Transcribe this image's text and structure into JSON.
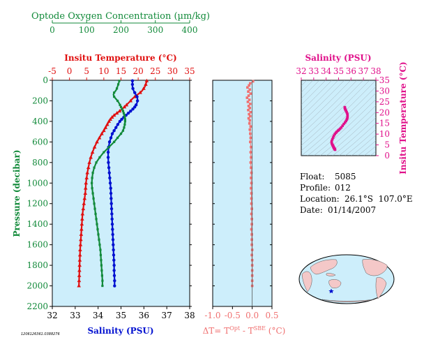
{
  "colors": {
    "panel_bg": "#cdeefb",
    "temperature": "#e01010",
    "salinity": "#0010d0",
    "oxygen": "#128a3a",
    "delta": "#f07070",
    "ts": "#e0108a",
    "land": "#f4c8c8",
    "ocean": "#cdeefb"
  },
  "chart_data": [
    {
      "type": "line",
      "panel": "profiles",
      "y_axis": {
        "label": "Pressure (decibar)",
        "range": [
          0,
          2200
        ],
        "ticks": [
          "0",
          "200",
          "400",
          "600",
          "800",
          "1000",
          "1200",
          "1400",
          "1600",
          "1800",
          "2000",
          "2200"
        ]
      },
      "oxygen_axis": {
        "label": "Optode Oxygen Concentration (µm/kg)",
        "range": [
          0,
          400
        ],
        "ticks": [
          "0",
          "100",
          "200",
          "300",
          "400"
        ]
      },
      "temperature_axis": {
        "label": "Insitu Temperature (°C)",
        "range": [
          -5,
          35
        ],
        "ticks": [
          "-5",
          "0",
          "5",
          "10",
          "15",
          "20",
          "25",
          "30",
          "35"
        ]
      },
      "salinity_axis": {
        "label": "Salinity (PSU)",
        "range": [
          32,
          38
        ],
        "ticks": [
          "32",
          "33",
          "34",
          "35",
          "36",
          "37",
          "38"
        ]
      },
      "series": [
        {
          "variable": "temperature",
          "points": [
            [
              5,
              22.5
            ],
            [
              20,
              22.4
            ],
            [
              40,
              22.2
            ],
            [
              60,
              22.0
            ],
            [
              80,
              21.6
            ],
            [
              100,
              21.2
            ],
            [
              120,
              20.6
            ],
            [
              140,
              19.8
            ],
            [
              160,
              19.0
            ],
            [
              180,
              18.3
            ],
            [
              200,
              17.8
            ],
            [
              220,
              17.2
            ],
            [
              240,
              16.6
            ],
            [
              260,
              16.0
            ],
            [
              280,
              15.3
            ],
            [
              300,
              14.6
            ],
            [
              320,
              13.8
            ],
            [
              340,
              13.0
            ],
            [
              360,
              12.4
            ],
            [
              380,
              11.9
            ],
            [
              400,
              11.5
            ],
            [
              430,
              11.0
            ],
            [
              460,
              10.5
            ],
            [
              490,
              10.0
            ],
            [
              520,
              9.4
            ],
            [
              560,
              8.7
            ],
            [
              600,
              8.0
            ],
            [
              650,
              7.3
            ],
            [
              700,
              6.7
            ],
            [
              750,
              6.2
            ],
            [
              800,
              5.8
            ],
            [
              850,
              5.5
            ],
            [
              900,
              5.2
            ],
            [
              950,
              5.0
            ],
            [
              1000,
              4.8
            ],
            [
              1050,
              4.7
            ],
            [
              1100,
              4.6
            ],
            [
              1150,
              4.4
            ],
            [
              1200,
              4.2
            ],
            [
              1250,
              4.0
            ],
            [
              1300,
              3.8
            ],
            [
              1350,
              3.7
            ],
            [
              1400,
              3.6
            ],
            [
              1450,
              3.5
            ],
            [
              1500,
              3.4
            ],
            [
              1550,
              3.3
            ],
            [
              1600,
              3.2
            ],
            [
              1650,
              3.1
            ],
            [
              1700,
              3.05
            ],
            [
              1750,
              3.0
            ],
            [
              1800,
              2.95
            ],
            [
              1850,
              2.9
            ],
            [
              1900,
              2.85
            ],
            [
              1950,
              2.8
            ],
            [
              2000,
              2.75
            ]
          ]
        },
        {
          "variable": "salinity",
          "points": [
            [
              5,
              35.5
            ],
            [
              20,
              35.5
            ],
            [
              40,
              35.5
            ],
            [
              60,
              35.5
            ],
            [
              80,
              35.52
            ],
            [
              100,
              35.55
            ],
            [
              120,
              35.6
            ],
            [
              140,
              35.65
            ],
            [
              160,
              35.7
            ],
            [
              180,
              35.72
            ],
            [
              200,
              35.72
            ],
            [
              220,
              35.7
            ],
            [
              240,
              35.66
            ],
            [
              260,
              35.6
            ],
            [
              280,
              35.52
            ],
            [
              300,
              35.42
            ],
            [
              320,
              35.32
            ],
            [
              340,
              35.22
            ],
            [
              360,
              35.12
            ],
            [
              380,
              35.03
            ],
            [
              400,
              34.95
            ],
            [
              430,
              34.86
            ],
            [
              460,
              34.78
            ],
            [
              490,
              34.7
            ],
            [
              520,
              34.62
            ],
            [
              560,
              34.56
            ],
            [
              600,
              34.5
            ],
            [
              650,
              34.46
            ],
            [
              700,
              34.44
            ],
            [
              750,
              34.44
            ],
            [
              800,
              34.45
            ],
            [
              850,
              34.47
            ],
            [
              900,
              34.49
            ],
            [
              950,
              34.51
            ],
            [
              1000,
              34.53
            ],
            [
              1050,
              34.55
            ],
            [
              1100,
              34.56
            ],
            [
              1150,
              34.57
            ],
            [
              1200,
              34.58
            ],
            [
              1250,
              34.59
            ],
            [
              1300,
              34.6
            ],
            [
              1350,
              34.61
            ],
            [
              1400,
              34.62
            ],
            [
              1450,
              34.63
            ],
            [
              1500,
              34.64
            ],
            [
              1550,
              34.65
            ],
            [
              1600,
              34.66
            ],
            [
              1650,
              34.67
            ],
            [
              1700,
              34.68
            ],
            [
              1750,
              34.69
            ],
            [
              1800,
              34.7
            ],
            [
              1850,
              34.7
            ],
            [
              1900,
              34.71
            ],
            [
              1950,
              34.72
            ],
            [
              2000,
              34.72
            ]
          ]
        },
        {
          "variable": "oxygen",
          "points": [
            [
              5,
              195
            ],
            [
              20,
              194
            ],
            [
              40,
              192
            ],
            [
              60,
              190
            ],
            [
              80,
              188
            ],
            [
              100,
              185
            ],
            [
              120,
              180
            ],
            [
              140,
              178
            ],
            [
              160,
              180
            ],
            [
              180,
              185
            ],
            [
              200,
              190
            ],
            [
              220,
              194
            ],
            [
              240,
              197
            ],
            [
              260,
              200
            ],
            [
              280,
              203
            ],
            [
              300,
              206
            ],
            [
              320,
              208
            ],
            [
              340,
              210
            ],
            [
              360,
              211
            ],
            [
              380,
              212
            ],
            [
              400,
              212
            ],
            [
              430,
              211
            ],
            [
              460,
              209
            ],
            [
              490,
              206
            ],
            [
              520,
              200
            ],
            [
              560,
              190
            ],
            [
              600,
              180
            ],
            [
              650,
              165
            ],
            [
              700,
              150
            ],
            [
              750,
              138
            ],
            [
              800,
              128
            ],
            [
              850,
              122
            ],
            [
              900,
              118
            ],
            [
              950,
              116
            ],
            [
              1000,
              115
            ],
            [
              1050,
              116
            ],
            [
              1100,
              118
            ],
            [
              1150,
              120
            ],
            [
              1200,
              122
            ],
            [
              1250,
              124
            ],
            [
              1300,
              126
            ],
            [
              1350,
              128
            ],
            [
              1400,
              130
            ],
            [
              1450,
              132
            ],
            [
              1500,
              134
            ],
            [
              1550,
              136
            ],
            [
              1600,
              138
            ],
            [
              1650,
              140
            ],
            [
              1700,
              141
            ],
            [
              1750,
              142
            ],
            [
              1800,
              143
            ],
            [
              1850,
              144
            ],
            [
              1900,
              145
            ],
            [
              1950,
              146
            ],
            [
              2000,
              146
            ]
          ]
        }
      ]
    },
    {
      "type": "scatter",
      "panel": "delta",
      "x_axis": {
        "label": "ΔT= T",
        "sup1": "Opt",
        "mid": " - T",
        "sup2": "SBE",
        "unit": " (°C)",
        "range": [
          -1.0,
          0.5
        ],
        "ticks": [
          "-1.0",
          "-0.5",
          "0.0",
          "0.5"
        ]
      },
      "points": [
        [
          10,
          0.02
        ],
        [
          30,
          -0.05
        ],
        [
          50,
          -0.08
        ],
        [
          70,
          -0.12
        ],
        [
          90,
          -0.06
        ],
        [
          110,
          -0.1
        ],
        [
          130,
          -0.04
        ],
        [
          150,
          -0.09
        ],
        [
          170,
          -0.13
        ],
        [
          190,
          -0.07
        ],
        [
          210,
          -0.11
        ],
        [
          230,
          -0.05
        ],
        [
          250,
          -0.09
        ],
        [
          270,
          -0.06
        ],
        [
          290,
          -0.1
        ],
        [
          310,
          -0.04
        ],
        [
          330,
          -0.08
        ],
        [
          350,
          -0.05
        ],
        [
          370,
          -0.09
        ],
        [
          390,
          -0.06
        ],
        [
          420,
          -0.07
        ],
        [
          450,
          -0.04
        ],
        [
          480,
          -0.06
        ],
        [
          520,
          -0.05
        ],
        [
          560,
          -0.04
        ],
        [
          600,
          -0.05
        ],
        [
          650,
          -0.03
        ],
        [
          700,
          -0.04
        ],
        [
          750,
          -0.03
        ],
        [
          800,
          -0.04
        ],
        [
          850,
          -0.03
        ],
        [
          900,
          -0.02
        ],
        [
          950,
          -0.03
        ],
        [
          1000,
          -0.02
        ],
        [
          1050,
          -0.03
        ],
        [
          1100,
          -0.02
        ],
        [
          1150,
          -0.02
        ],
        [
          1200,
          -0.02
        ],
        [
          1250,
          -0.01
        ],
        [
          1300,
          -0.02
        ],
        [
          1350,
          -0.01
        ],
        [
          1400,
          -0.01
        ],
        [
          1450,
          -0.02
        ],
        [
          1500,
          -0.01
        ],
        [
          1550,
          -0.01
        ],
        [
          1600,
          -0.01
        ],
        [
          1650,
          0.0
        ],
        [
          1700,
          -0.01
        ],
        [
          1750,
          0.0
        ],
        [
          1800,
          0.0
        ],
        [
          1850,
          0.0
        ],
        [
          1900,
          0.0
        ],
        [
          1950,
          0.0
        ],
        [
          2000,
          0.0
        ]
      ]
    },
    {
      "type": "scatter",
      "panel": "ts",
      "x_axis": {
        "label": "Salinity (PSU)",
        "range": [
          32,
          38
        ],
        "ticks": [
          "32",
          "33",
          "34",
          "35",
          "36",
          "37",
          "38"
        ]
      },
      "y_axis": {
        "label": "Insitu Temperature (°C)",
        "range": [
          0,
          35
        ],
        "ticks": [
          "0",
          "5",
          "10",
          "15",
          "20",
          "25",
          "30",
          "35"
        ]
      },
      "points": [
        [
          34.72,
          2.75
        ],
        [
          34.7,
          3.0
        ],
        [
          34.68,
          3.1
        ],
        [
          34.66,
          3.3
        ],
        [
          34.64,
          3.5
        ],
        [
          34.62,
          3.7
        ],
        [
          34.6,
          3.9
        ],
        [
          34.58,
          4.2
        ],
        [
          34.56,
          4.5
        ],
        [
          34.53,
          4.8
        ],
        [
          34.5,
          5.1
        ],
        [
          34.46,
          5.6
        ],
        [
          34.44,
          6.2
        ],
        [
          34.45,
          6.8
        ],
        [
          34.5,
          7.6
        ],
        [
          34.56,
          8.4
        ],
        [
          34.62,
          9.2
        ],
        [
          34.7,
          10.0
        ],
        [
          34.78,
          10.6
        ],
        [
          34.86,
          11.1
        ],
        [
          34.95,
          11.6
        ],
        [
          35.03,
          12.0
        ],
        [
          35.12,
          12.5
        ],
        [
          35.22,
          13.1
        ],
        [
          35.32,
          13.9
        ],
        [
          35.42,
          14.7
        ],
        [
          35.52,
          15.4
        ],
        [
          35.6,
          16.1
        ],
        [
          35.66,
          16.8
        ],
        [
          35.7,
          17.4
        ],
        [
          35.72,
          18.0
        ],
        [
          35.72,
          18.8
        ],
        [
          35.7,
          19.5
        ],
        [
          35.65,
          20.2
        ],
        [
          35.6,
          20.8
        ],
        [
          35.55,
          21.4
        ],
        [
          35.52,
          21.8
        ],
        [
          35.5,
          22.2
        ],
        [
          35.5,
          22.5
        ]
      ]
    }
  ],
  "info": {
    "float_label": "Float:",
    "float_value": "5085",
    "profile_label": "Profile:",
    "profile_value": "012",
    "location_label": "Location:",
    "location_value": "26.1°S  107.0°E",
    "date_label": "Date:",
    "date_value": "01/14/2007"
  },
  "footer_id": "1206126361.0388276"
}
